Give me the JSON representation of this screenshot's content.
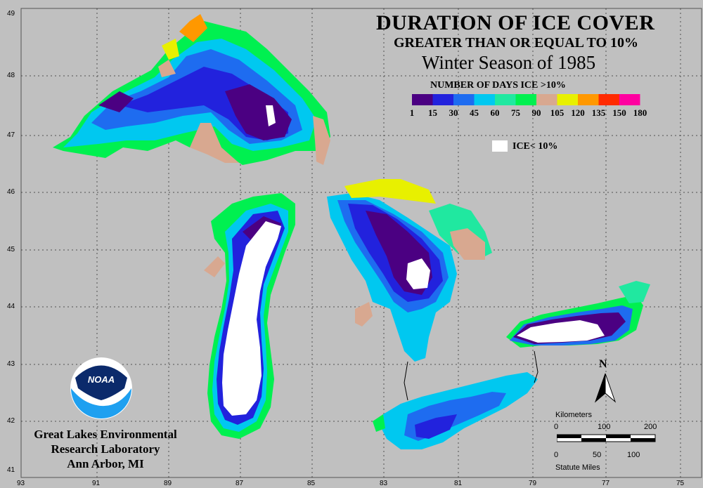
{
  "title": {
    "line1": "DURATION OF ICE COVER",
    "line2": "GREATER THAN OR EQUAL TO 10%",
    "line3": "Winter Season of 1985"
  },
  "legend": {
    "title": "NUMBER OF DAYS ICE >10%",
    "ticks": [
      "1",
      "15",
      "30",
      "45",
      "60",
      "75",
      "90",
      "105",
      "120",
      "135",
      "150",
      "180"
    ],
    "colors": [
      "#4b0082",
      "#2222dd",
      "#1e6cf0",
      "#00c8f0",
      "#20e8a0",
      "#00f050",
      "#d8a890",
      "#e8f000",
      "#ff9800",
      "#ff2a00",
      "#ff00a0"
    ],
    "ice_label": "ICE< 10%",
    "ice_color": "#ffffff"
  },
  "axes": {
    "lat_labels": [
      "49",
      "48",
      "47",
      "46",
      "45",
      "44",
      "43",
      "42",
      "41"
    ],
    "lon_labels": [
      "93",
      "91",
      "89",
      "87",
      "85",
      "83",
      "81",
      "79",
      "77",
      "75"
    ]
  },
  "organization": {
    "line1": "Great Lakes Environmental",
    "line2": "Research Laboratory",
    "line3": "Ann Arbor, MI",
    "logo_text": "NOAA"
  },
  "north_arrow": {
    "label": "N"
  },
  "scale_bar": {
    "km_title": "Kilometers",
    "km_ticks": [
      "0",
      "100",
      "200"
    ],
    "mi_ticks": [
      "0",
      "50",
      "100"
    ],
    "mi_title": "Statute Miles"
  }
}
